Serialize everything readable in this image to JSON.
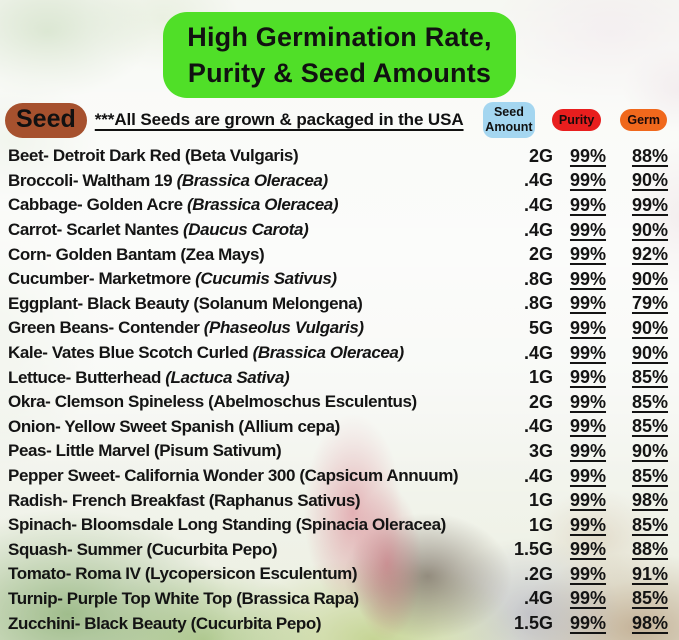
{
  "header": {
    "title_line1": "High Germination Rate,",
    "title_line2": "Purity & Seed Amounts"
  },
  "subheader": {
    "seed_label": "Seed",
    "note": "***All Seeds are grown & packaged in the USA"
  },
  "columns": {
    "amount": {
      "line1": "Seed",
      "line2": "Amount"
    },
    "purity": {
      "label": "Purity"
    },
    "germ": {
      "label": "Germ"
    }
  },
  "colors": {
    "title_bg": "#50df28",
    "seed_pill_bg": "#a6512e",
    "amount_pill_bg": "#a4d6f0",
    "purity_pill_bg": "#e81e1e",
    "germ_pill_bg": "#f0681c"
  },
  "rows": [
    {
      "name": "Beet- Detroit Dark Red",
      "sci": "Beta Vulgaris",
      "italic": false,
      "amount": "2G",
      "purity": "99%",
      "germ": "88%"
    },
    {
      "name": "Broccoli- Waltham 19",
      "sci": "Brassica Oleracea",
      "italic": true,
      "amount": ".4G",
      "purity": "99%",
      "germ": "90%"
    },
    {
      "name": "Cabbage- Golden Acre",
      "sci": "Brassica Oleracea",
      "italic": true,
      "amount": ".4G",
      "purity": "99%",
      "germ": "99%"
    },
    {
      "name": "Carrot- Scarlet Nantes",
      "sci": "Daucus Carota",
      "italic": true,
      "amount": ".4G",
      "purity": "99%",
      "germ": "90%"
    },
    {
      "name": "Corn- Golden Bantam",
      "sci": "Zea Mays",
      "italic": false,
      "amount": "2G",
      "purity": "99%",
      "germ": "92%"
    },
    {
      "name": "Cucumber- Marketmore",
      "sci": "Cucumis Sativus",
      "italic": true,
      "amount": ".8G",
      "purity": "99%",
      "germ": "90%"
    },
    {
      "name": "Eggplant- Black Beauty",
      "sci": "Solanum Melongena",
      "italic": false,
      "amount": ".8G",
      "purity": "99%",
      "germ": "79%"
    },
    {
      "name": "Green Beans- Contender",
      "sci": "Phaseolus Vulgaris",
      "italic": true,
      "amount": "5G",
      "purity": "99%",
      "germ": "90%"
    },
    {
      "name": "Kale- Vates Blue Scotch Curled",
      "sci": "Brassica Oleracea",
      "italic": true,
      "amount": ".4G",
      "purity": "99%",
      "germ": "90%"
    },
    {
      "name": "Lettuce- Butterhead",
      "sci": "Lactuca Sativa",
      "italic": true,
      "amount": "1G",
      "purity": "99%",
      "germ": "85%"
    },
    {
      "name": "Okra- Clemson Spineless",
      "sci": "Abelmoschus Esculentus",
      "italic": false,
      "amount": "2G",
      "purity": "99%",
      "germ": "85%"
    },
    {
      "name": "Onion- Yellow Sweet Spanish",
      "sci": "Allium cepa",
      "italic": false,
      "amount": ".4G",
      "purity": "99%",
      "germ": "85%"
    },
    {
      "name": "Peas- Little Marvel",
      "sci": "Pisum Sativum",
      "italic": false,
      "amount": "3G",
      "purity": "99%",
      "germ": "90%"
    },
    {
      "name": "Pepper Sweet- California Wonder 300",
      "sci": "Capsicum Annuum",
      "italic": false,
      "amount": ".4G",
      "purity": "99%",
      "germ": "85%"
    },
    {
      "name": "Radish- French Breakfast",
      "sci": "Raphanus Sativus",
      "italic": false,
      "amount": "1G",
      "purity": "99%",
      "germ": "98%"
    },
    {
      "name": "Spinach- Bloomsdale Long Standing",
      "sci": "Spinacia Oleracea",
      "italic": false,
      "amount": "1G",
      "purity": "99%",
      "germ": "85%"
    },
    {
      "name": "Squash- Summer",
      "sci": "Cucurbita Pepo",
      "italic": false,
      "amount": "1.5G",
      "purity": "99%",
      "germ": "88%"
    },
    {
      "name": "Tomato- Roma IV",
      "sci": "Lycopersicon Esculentum",
      "italic": false,
      "amount": ".2G",
      "purity": "99%",
      "germ": "91%"
    },
    {
      "name": "Turnip- Purple Top White Top",
      "sci": "Brassica Rapa",
      "italic": false,
      "amount": ".4G",
      "purity": "99%",
      "germ": "85%"
    },
    {
      "name": "Zucchini- Black Beauty",
      "sci": "Cucurbita Pepo",
      "italic": false,
      "amount": "1.5G",
      "purity": "99%",
      "germ": "98%"
    }
  ]
}
